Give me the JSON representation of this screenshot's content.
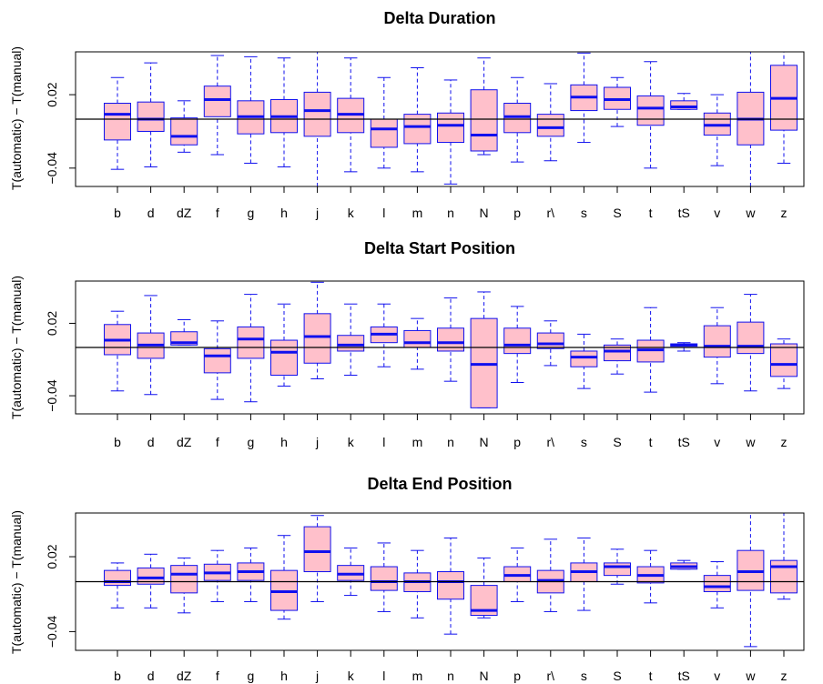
{
  "chart_data": [
    {
      "type": "boxplot",
      "title": "Delta Duration",
      "ylabel": "T(automatic) − T(manual)",
      "ylim": [
        -0.055,
        0.055
      ],
      "yticks": [
        0.02,
        -0.04
      ],
      "reference_line": 0,
      "categories": [
        "b",
        "d",
        "dZ",
        "f",
        "g",
        "h",
        "j",
        "k",
        "l",
        "m",
        "n",
        "N",
        "p",
        "r\\",
        "s",
        "S",
        "t",
        "tS",
        "v",
        "w",
        "z"
      ],
      "boxes": [
        {
          "whisker_low": -0.041,
          "q1": -0.017,
          "median": 0.004,
          "q3": 0.013,
          "whisker_high": 0.034
        },
        {
          "whisker_low": -0.039,
          "q1": -0.01,
          "median": 0.0,
          "q3": 0.014,
          "whisker_high": 0.046
        },
        {
          "whisker_low": -0.027,
          "q1": -0.021,
          "median": -0.014,
          "q3": 0.001,
          "whisker_high": 0.015
        },
        {
          "whisker_low": -0.029,
          "q1": 0.002,
          "median": 0.016,
          "q3": 0.027,
          "whisker_high": 0.052
        },
        {
          "whisker_low": -0.036,
          "q1": -0.012,
          "median": 0.002,
          "q3": 0.015,
          "whisker_high": 0.051
        },
        {
          "whisker_low": -0.039,
          "q1": -0.011,
          "median": 0.002,
          "q3": 0.016,
          "whisker_high": 0.05
        },
        {
          "whisker_low": -0.055,
          "q1": -0.014,
          "median": 0.007,
          "q3": 0.022,
          "whisker_high": 0.055
        },
        {
          "whisker_low": -0.043,
          "q1": -0.011,
          "median": 0.004,
          "q3": 0.017,
          "whisker_high": 0.05
        },
        {
          "whisker_low": -0.04,
          "q1": -0.023,
          "median": -0.008,
          "q3": 0.0,
          "whisker_high": 0.034
        },
        {
          "whisker_low": -0.043,
          "q1": -0.02,
          "median": -0.006,
          "q3": 0.004,
          "whisker_high": 0.042
        },
        {
          "whisker_low": -0.053,
          "q1": -0.019,
          "median": -0.005,
          "q3": 0.005,
          "whisker_high": 0.032
        },
        {
          "whisker_low": -0.029,
          "q1": -0.026,
          "median": -0.013,
          "q3": 0.024,
          "whisker_high": 0.05
        },
        {
          "whisker_low": -0.035,
          "q1": -0.011,
          "median": 0.002,
          "q3": 0.013,
          "whisker_high": 0.034
        },
        {
          "whisker_low": -0.034,
          "q1": -0.014,
          "median": -0.007,
          "q3": 0.004,
          "whisker_high": 0.029
        },
        {
          "whisker_low": -0.019,
          "q1": 0.007,
          "median": 0.018,
          "q3": 0.028,
          "whisker_high": 0.054
        },
        {
          "whisker_low": -0.006,
          "q1": 0.008,
          "median": 0.016,
          "q3": 0.026,
          "whisker_high": 0.034
        },
        {
          "whisker_low": -0.04,
          "q1": -0.005,
          "median": 0.009,
          "q3": 0.019,
          "whisker_high": 0.047
        },
        {
          "whisker_low": 0.008,
          "q1": 0.008,
          "median": 0.01,
          "q3": 0.015,
          "whisker_high": 0.021
        },
        {
          "whisker_low": -0.038,
          "q1": -0.013,
          "median": -0.005,
          "q3": 0.005,
          "whisker_high": 0.02
        },
        {
          "whisker_low": -0.055,
          "q1": -0.021,
          "median": 0.0,
          "q3": 0.022,
          "whisker_high": 0.055
        },
        {
          "whisker_low": -0.036,
          "q1": -0.009,
          "median": 0.017,
          "q3": 0.044,
          "whisker_high": 0.055
        }
      ]
    },
    {
      "type": "boxplot",
      "title": "Delta Start Position",
      "ylabel": "T(automatic) − T(manual)",
      "ylim": [
        -0.055,
        0.055
      ],
      "yticks": [
        0.02,
        -0.04
      ],
      "reference_line": 0,
      "categories": [
        "b",
        "d",
        "dZ",
        "f",
        "g",
        "h",
        "j",
        "k",
        "l",
        "m",
        "n",
        "N",
        "p",
        "r\\",
        "s",
        "S",
        "t",
        "tS",
        "v",
        "w",
        "z"
      ],
      "boxes": [
        {
          "whisker_low": -0.036,
          "q1": -0.006,
          "median": 0.006,
          "q3": 0.019,
          "whisker_high": 0.03
        },
        {
          "whisker_low": -0.039,
          "q1": -0.009,
          "median": 0.002,
          "q3": 0.012,
          "whisker_high": 0.043
        },
        {
          "whisker_low": 0.002,
          "q1": 0.002,
          "median": 0.004,
          "q3": 0.013,
          "whisker_high": 0.023
        },
        {
          "whisker_low": -0.043,
          "q1": -0.021,
          "median": -0.007,
          "q3": -0.001,
          "whisker_high": 0.022
        },
        {
          "whisker_low": -0.045,
          "q1": -0.009,
          "median": 0.007,
          "q3": 0.017,
          "whisker_high": 0.044
        },
        {
          "whisker_low": -0.032,
          "q1": -0.023,
          "median": -0.004,
          "q3": 0.006,
          "whisker_high": 0.036
        },
        {
          "whisker_low": -0.026,
          "q1": -0.013,
          "median": 0.009,
          "q3": 0.028,
          "whisker_high": 0.054
        },
        {
          "whisker_low": -0.023,
          "q1": -0.003,
          "median": 0.002,
          "q3": 0.01,
          "whisker_high": 0.036
        },
        {
          "whisker_low": -0.016,
          "q1": 0.004,
          "median": 0.011,
          "q3": 0.017,
          "whisker_high": 0.036
        },
        {
          "whisker_low": -0.018,
          "q1": 0.0,
          "median": 0.004,
          "q3": 0.014,
          "whisker_high": 0.024
        },
        {
          "whisker_low": -0.028,
          "q1": -0.003,
          "median": 0.004,
          "q3": 0.016,
          "whisker_high": 0.041
        },
        {
          "whisker_low": -0.05,
          "q1": -0.05,
          "median": -0.014,
          "q3": 0.024,
          "whisker_high": 0.046
        },
        {
          "whisker_low": -0.029,
          "q1": -0.005,
          "median": 0.002,
          "q3": 0.016,
          "whisker_high": 0.034
        },
        {
          "whisker_low": -0.015,
          "q1": -0.001,
          "median": 0.003,
          "q3": 0.012,
          "whisker_high": 0.022
        },
        {
          "whisker_low": -0.034,
          "q1": -0.016,
          "median": -0.008,
          "q3": -0.003,
          "whisker_high": 0.011
        },
        {
          "whisker_low": -0.022,
          "q1": -0.011,
          "median": -0.003,
          "q3": 0.002,
          "whisker_high": 0.007
        },
        {
          "whisker_low": -0.037,
          "q1": -0.012,
          "median": -0.002,
          "q3": 0.006,
          "whisker_high": 0.033
        },
        {
          "whisker_low": -0.003,
          "q1": 0.001,
          "median": 0.002,
          "q3": 0.003,
          "whisker_high": 0.004
        },
        {
          "whisker_low": -0.03,
          "q1": -0.008,
          "median": 0.001,
          "q3": 0.018,
          "whisker_high": 0.033
        },
        {
          "whisker_low": -0.036,
          "q1": -0.005,
          "median": 0.001,
          "q3": 0.021,
          "whisker_high": 0.044
        },
        {
          "whisker_low": -0.034,
          "q1": -0.024,
          "median": -0.014,
          "q3": 0.003,
          "whisker_high": 0.007
        }
      ]
    },
    {
      "type": "boxplot",
      "title": "Delta End Position",
      "ylabel": "T(automatic) − T(manual)",
      "ylim": [
        -0.055,
        0.055
      ],
      "yticks": [
        0.02,
        -0.04
      ],
      "reference_line": 0,
      "categories": [
        "b",
        "d",
        "dZ",
        "f",
        "g",
        "h",
        "j",
        "k",
        "l",
        "m",
        "n",
        "N",
        "p",
        "r\\",
        "s",
        "S",
        "t",
        "tS",
        "v",
        "w",
        "z"
      ],
      "boxes": [
        {
          "whisker_low": -0.021,
          "q1": -0.003,
          "median": -0.0,
          "q3": 0.009,
          "whisker_high": 0.015
        },
        {
          "whisker_low": -0.021,
          "q1": -0.002,
          "median": 0.003,
          "q3": 0.011,
          "whisker_high": 0.022
        },
        {
          "whisker_low": -0.025,
          "q1": -0.009,
          "median": 0.006,
          "q3": 0.013,
          "whisker_high": 0.019
        },
        {
          "whisker_low": -0.016,
          "q1": 0.001,
          "median": 0.007,
          "q3": 0.014,
          "whisker_high": 0.025
        },
        {
          "whisker_low": -0.016,
          "q1": 0.001,
          "median": 0.008,
          "q3": 0.015,
          "whisker_high": 0.027
        },
        {
          "whisker_low": -0.03,
          "q1": -0.023,
          "median": -0.008,
          "q3": 0.009,
          "whisker_high": 0.037
        },
        {
          "whisker_low": -0.016,
          "q1": 0.008,
          "median": 0.024,
          "q3": 0.044,
          "whisker_high": 0.053
        },
        {
          "whisker_low": -0.011,
          "q1": 0.001,
          "median": 0.006,
          "q3": 0.013,
          "whisker_high": 0.027
        },
        {
          "whisker_low": -0.024,
          "q1": -0.007,
          "median": 0.0,
          "q3": 0.012,
          "whisker_high": 0.031
        },
        {
          "whisker_low": -0.029,
          "q1": -0.008,
          "median": 0.0,
          "q3": 0.007,
          "whisker_high": 0.025
        },
        {
          "whisker_low": -0.042,
          "q1": -0.014,
          "median": -0.0,
          "q3": 0.008,
          "whisker_high": 0.035
        },
        {
          "whisker_low": -0.029,
          "q1": -0.027,
          "median": -0.023,
          "q3": -0.003,
          "whisker_high": 0.019
        },
        {
          "whisker_low": -0.016,
          "q1": 0.0,
          "median": 0.005,
          "q3": 0.012,
          "whisker_high": 0.027
        },
        {
          "whisker_low": -0.024,
          "q1": -0.009,
          "median": 0.001,
          "q3": 0.009,
          "whisker_high": 0.034
        },
        {
          "whisker_low": -0.023,
          "q1": 0.0,
          "median": 0.008,
          "q3": 0.015,
          "whisker_high": 0.035
        },
        {
          "whisker_low": -0.002,
          "q1": 0.005,
          "median": 0.012,
          "q3": 0.015,
          "whisker_high": 0.026
        },
        {
          "whisker_low": -0.017,
          "q1": -0.001,
          "median": 0.005,
          "q3": 0.012,
          "whisker_high": 0.025
        },
        {
          "whisker_low": 0.01,
          "q1": 0.01,
          "median": 0.012,
          "q3": 0.015,
          "whisker_high": 0.017
        },
        {
          "whisker_low": -0.021,
          "q1": -0.008,
          "median": -0.004,
          "q3": 0.005,
          "whisker_high": 0.016
        },
        {
          "whisker_low": -0.052,
          "q1": -0.007,
          "median": 0.008,
          "q3": 0.025,
          "whisker_high": 0.055
        },
        {
          "whisker_low": -0.014,
          "q1": -0.009,
          "median": 0.012,
          "q3": 0.017,
          "whisker_high": 0.055
        }
      ]
    }
  ]
}
